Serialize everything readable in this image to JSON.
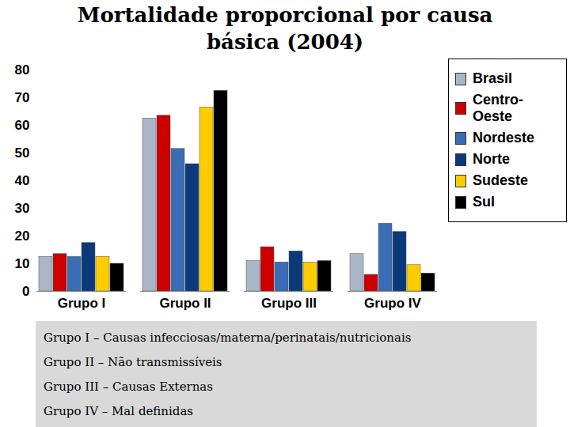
{
  "chart_data": {
    "type": "bar",
    "title": "Mortalidade proporcional por causa básica (2004)",
    "categories": [
      "Grupo I",
      "Grupo II",
      "Grupo III",
      "Grupo IV"
    ],
    "series": [
      {
        "name": "Brasil",
        "color": "#a9b6c8",
        "values": [
          12.5,
          62.5,
          11,
          13.5
        ]
      },
      {
        "name": "Centro-Oeste",
        "color": "#cc0000",
        "values": [
          13.5,
          63.5,
          16,
          6
        ]
      },
      {
        "name": "Nordeste",
        "color": "#3a6db5",
        "values": [
          12.5,
          51.5,
          10.5,
          24.5
        ]
      },
      {
        "name": "Norte",
        "color": "#0b3a7a",
        "values": [
          17.5,
          46,
          14.5,
          21.5
        ]
      },
      {
        "name": "Sudeste",
        "color": "#ffcc00",
        "values": [
          12.5,
          66.5,
          10.5,
          9.5
        ]
      },
      {
        "name": "Sul",
        "color": "#000000",
        "values": [
          10,
          72.5,
          11,
          6.5
        ]
      }
    ],
    "ylim": [
      0,
      80
    ],
    "yticks": [
      0,
      10,
      20,
      30,
      40,
      50,
      60,
      70,
      80
    ],
    "grid": false,
    "legend": "right",
    "annotations": [
      "Grupo I – Causas infecciosas/materna/perinatais/nutricionais",
      "Grupo II – Não transmissíveis",
      "Grupo III – Causas Externas",
      "Grupo IV – Mal definidas"
    ]
  }
}
